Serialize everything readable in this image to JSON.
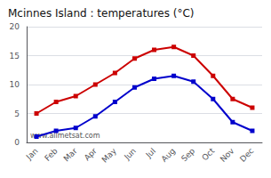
{
  "chart_data": {
    "type": "line",
    "title": "Mcinnes Island : temperatures (°C)",
    "categories": [
      "Jan",
      "Feb",
      "Mar",
      "Apr",
      "May",
      "Jun",
      "Jul",
      "Aug",
      "Sep",
      "Oct",
      "Nov",
      "Dec"
    ],
    "series": [
      {
        "color": "#cc0000",
        "marker": "square",
        "values": [
          5.0,
          7.0,
          8.0,
          10.0,
          12.0,
          14.5,
          16.0,
          16.5,
          15.0,
          11.5,
          7.5,
          6.0
        ]
      },
      {
        "color": "#0000cc",
        "marker": "square",
        "values": [
          1.0,
          2.0,
          2.5,
          4.5,
          7.0,
          9.5,
          11.0,
          11.5,
          10.5,
          7.5,
          3.5,
          2.0
        ]
      }
    ],
    "ylim": [
      0,
      20
    ],
    "yticks": [
      0,
      5,
      10,
      15,
      20
    ],
    "grid": true,
    "annotation": "www.allmetsat.com"
  }
}
